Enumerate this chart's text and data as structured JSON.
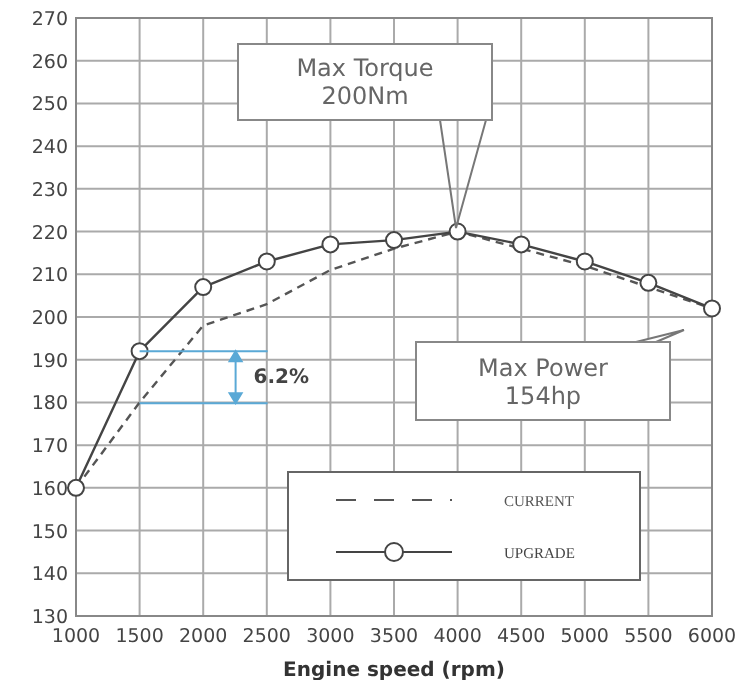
{
  "chart_data": {
    "type": "line",
    "xlabel": "Engine speed (rpm)",
    "x": [
      1000,
      1500,
      2000,
      2500,
      3000,
      3500,
      4000,
      4500,
      5000,
      5500,
      6000
    ],
    "series": [
      {
        "name": "CURRENT",
        "color": "#555555",
        "line_style": "dashed",
        "marker": "none",
        "values": [
          160,
          180,
          198,
          203,
          211,
          216,
          220,
          216,
          212,
          207,
          202
        ]
      },
      {
        "name": "UPGRADE",
        "color": "#444444",
        "line_style": "solid",
        "marker": "circle",
        "values": [
          160,
          192,
          207,
          213,
          217,
          218,
          220,
          217,
          213,
          208,
          202
        ]
      }
    ],
    "xlim": [
      1000,
      6000
    ],
    "xticks": [
      1000,
      1500,
      2000,
      2500,
      3000,
      3500,
      4000,
      4500,
      5000,
      5500,
      6000
    ],
    "ylim": [
      130,
      270
    ],
    "yticks": [
      130,
      140,
      150,
      160,
      170,
      180,
      190,
      200,
      210,
      220,
      230,
      240,
      250,
      260,
      270
    ],
    "grid": true,
    "legend": "bottom right",
    "annotations": [
      "Max Torque\n200Nm",
      "Max Power\n154hp",
      {
        "text": "6.2%",
        "x": 1500,
        "y": 192
      }
    ]
  }
}
